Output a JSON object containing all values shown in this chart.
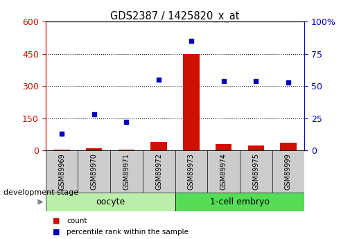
{
  "title": "GDS2387 / 1425820_x_at",
  "samples": [
    "GSM89969",
    "GSM89970",
    "GSM89971",
    "GSM89972",
    "GSM89973",
    "GSM89974",
    "GSM89975",
    "GSM89999"
  ],
  "count": [
    5,
    10,
    5,
    40,
    450,
    30,
    25,
    35
  ],
  "percentile": [
    13,
    28,
    22,
    55,
    85,
    54,
    54,
    53
  ],
  "ylim_left": [
    0,
    600
  ],
  "ylim_right": [
    0,
    100
  ],
  "yticks_left": [
    0,
    150,
    300,
    450,
    600
  ],
  "yticks_right": [
    0,
    25,
    50,
    75,
    100
  ],
  "bar_color": "#cc1100",
  "scatter_color": "#0000bb",
  "oocyte_label": "oocyte",
  "embryo_label": "1-cell embryo",
  "oocyte_color": "#bbeeaa",
  "embryo_color": "#55dd55",
  "stage_label": "development stage",
  "legend_count": "count",
  "legend_percentile": "percentile rank within the sample",
  "axis_color_left": "#cc1100",
  "axis_color_right": "#0000bb",
  "bar_width": 0.5,
  "sample_box_color": "#cccccc",
  "n_oocyte": 4,
  "n_embryo": 4
}
